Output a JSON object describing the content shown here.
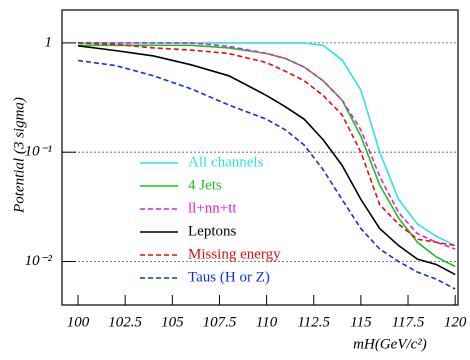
{
  "chart_data": {
    "type": "line",
    "y_label": "Potential (3 sigma)",
    "x_label": "mH(GeV/c²)",
    "x": [
      100,
      102,
      104,
      106,
      108,
      110,
      111,
      112,
      113,
      114,
      115,
      116,
      117,
      118,
      119,
      120
    ],
    "series": [
      {
        "name": "All channels",
        "color": "#33e0e0",
        "dash": false,
        "values": [
          1,
          1,
          1,
          1,
          1,
          1,
          1,
          1,
          0.95,
          0.7,
          0.37,
          0.1,
          0.037,
          0.022,
          0.017,
          0.014
        ]
      },
      {
        "name": "4 Jets",
        "color": "#1fbf1f",
        "dash": false,
        "values": [
          0.95,
          0.95,
          0.95,
          0.95,
          0.9,
          0.8,
          0.72,
          0.6,
          0.45,
          0.3,
          0.14,
          0.05,
          0.025,
          0.015,
          0.011,
          0.009
        ]
      },
      {
        "name": "ll+nn+tt",
        "color": "#e020e0",
        "dash": true,
        "values": [
          1,
          1,
          1,
          1,
          0.93,
          0.8,
          0.72,
          0.6,
          0.45,
          0.3,
          0.16,
          0.06,
          0.028,
          0.018,
          0.015,
          0.013
        ]
      },
      {
        "name": "Leptons",
        "color": "#000000",
        "dash": false,
        "values": [
          0.94,
          0.85,
          0.76,
          0.63,
          0.5,
          0.33,
          0.26,
          0.2,
          0.13,
          0.076,
          0.037,
          0.02,
          0.014,
          0.0105,
          0.0094,
          0.0076
        ]
      },
      {
        "name": "Missing energy",
        "color": "#e01010",
        "dash": true,
        "values": [
          1,
          0.97,
          0.9,
          0.86,
          0.8,
          0.66,
          0.55,
          0.45,
          0.33,
          0.22,
          0.1,
          0.033,
          0.022,
          0.016,
          0.015,
          0.014
        ]
      },
      {
        "name": "Taus (H or Z)",
        "color": "#1030e0",
        "dash": true,
        "values": [
          0.69,
          0.62,
          0.5,
          0.38,
          0.27,
          0.2,
          0.16,
          0.116,
          0.069,
          0.037,
          0.02,
          0.013,
          0.01,
          0.008,
          0.0069,
          0.0056
        ]
      }
    ],
    "xlim": [
      99.15,
      120.15
    ],
    "xticks": [
      100,
      102.5,
      105,
      107.5,
      110,
      112.5,
      115,
      117.5,
      120
    ],
    "ylim": [
      0.004,
      2
    ],
    "log_y": true,
    "yticks": [
      1,
      {
        "value": 0.1,
        "label": "10⁻¹"
      },
      {
        "value": 0.01,
        "label": "10⁻²"
      }
    ],
    "grid": true
  }
}
